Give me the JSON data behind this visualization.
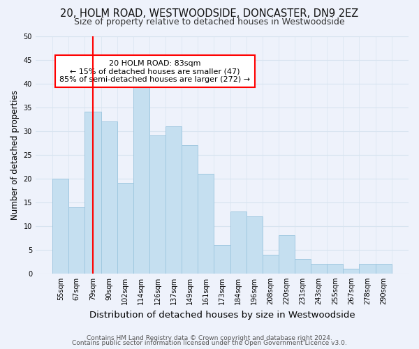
{
  "title": "20, HOLM ROAD, WESTWOODSIDE, DONCASTER, DN9 2EZ",
  "subtitle": "Size of property relative to detached houses in Westwoodside",
  "xlabel": "Distribution of detached houses by size in Westwoodside",
  "ylabel": "Number of detached properties",
  "bin_labels": [
    "55sqm",
    "67sqm",
    "79sqm",
    "90sqm",
    "102sqm",
    "114sqm",
    "126sqm",
    "137sqm",
    "149sqm",
    "161sqm",
    "173sqm",
    "184sqm",
    "196sqm",
    "208sqm",
    "220sqm",
    "231sqm",
    "243sqm",
    "255sqm",
    "267sqm",
    "278sqm",
    "290sqm"
  ],
  "bar_heights": [
    20,
    14,
    34,
    32,
    19,
    40,
    29,
    31,
    27,
    21,
    6,
    13,
    12,
    4,
    8,
    3,
    2,
    2,
    1,
    2,
    2
  ],
  "bar_color": "#c5dff0",
  "bar_edge_color": "#a0c8e0",
  "vline_x_index": 2.0,
  "vline_color": "red",
  "annotation_line1": "20 HOLM ROAD: 83sqm",
  "annotation_line2": "← 15% of detached houses are smaller (47)",
  "annotation_line3": "85% of semi-detached houses are larger (272) →",
  "annotation_box_color": "white",
  "annotation_box_edge_color": "red",
  "ylim": [
    0,
    50
  ],
  "yticks": [
    0,
    5,
    10,
    15,
    20,
    25,
    30,
    35,
    40,
    45,
    50
  ],
  "footer_line1": "Contains HM Land Registry data © Crown copyright and database right 2024.",
  "footer_line2": "Contains public sector information licensed under the Open Government Licence v3.0.",
  "title_fontsize": 10.5,
  "subtitle_fontsize": 9,
  "xlabel_fontsize": 9.5,
  "ylabel_fontsize": 8.5,
  "tick_fontsize": 7,
  "footer_fontsize": 6.5,
  "annotation_fontsize": 8,
  "background_color": "#eef2fb",
  "grid_color": "#d8e4f0"
}
